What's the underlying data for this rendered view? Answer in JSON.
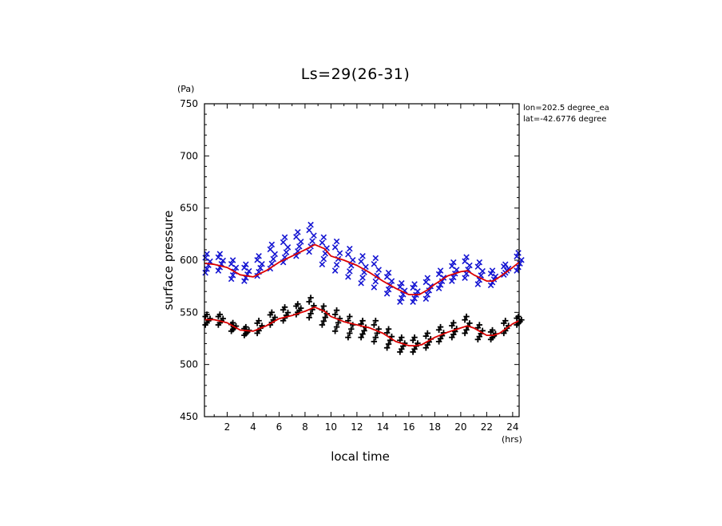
{
  "chart_data": {
    "type": "scatter",
    "title": "Ls=29(26-31)",
    "xlabel": "local time",
    "ylabel": "surface pressure",
    "x_unit": "(hrs)",
    "y_unit": "(Pa)",
    "xlim": [
      0.25,
      24.5
    ],
    "ylim": [
      450,
      750
    ],
    "x_ticks": [
      2,
      4,
      6,
      8,
      10,
      12,
      14,
      16,
      18,
      20,
      22,
      24
    ],
    "y_ticks": [
      450,
      500,
      550,
      600,
      650,
      700,
      750
    ],
    "annotations": [
      "lon=202.5 degree_ea",
      "lat=-42.6776 degree"
    ],
    "colors": {
      "series_a": "#1414d2",
      "series_b": "#000000",
      "fit": "#dc0000"
    },
    "series": [
      {
        "marker": "x",
        "x": [
          0.5,
          1.5,
          2.5,
          3.5,
          4.5,
          5.5,
          6.5,
          7.5,
          8.5,
          9.5,
          10.5,
          11.5,
          12.5,
          13.5,
          14.5,
          15.5,
          16.5,
          17.5,
          18.5,
          19.5,
          20.5,
          21.5,
          22.5,
          23.5,
          24.5
        ],
        "y_min": [
          588,
          590,
          582,
          580,
          585,
          592,
          598,
          604,
          608,
          596,
          590,
          584,
          578,
          574,
          568,
          560,
          560,
          563,
          573,
          580,
          583,
          577,
          576,
          586,
          590
        ],
        "y_max": [
          606,
          606,
          600,
          596,
          604,
          615,
          622,
          627,
          634,
          622,
          618,
          611,
          604,
          602,
          588,
          578,
          577,
          583,
          590,
          598,
          603,
          598,
          590,
          596,
          607
        ]
      },
      {
        "marker": "+",
        "x": [
          0.5,
          1.5,
          2.5,
          3.5,
          4.5,
          5.5,
          6.5,
          7.5,
          8.5,
          9.5,
          10.5,
          11.5,
          12.5,
          13.5,
          14.5,
          15.5,
          16.5,
          17.5,
          18.5,
          19.5,
          20.5,
          21.5,
          22.5,
          23.5,
          24.5
        ],
        "y_min": [
          538,
          538,
          532,
          528,
          530,
          538,
          542,
          548,
          545,
          538,
          532,
          526,
          526,
          522,
          516,
          512,
          512,
          516,
          522,
          526,
          530,
          524,
          524,
          530,
          538
        ],
        "y_max": [
          548,
          548,
          540,
          536,
          542,
          550,
          555,
          558,
          564,
          556,
          552,
          546,
          542,
          542,
          534,
          526,
          526,
          530,
          536,
          540,
          546,
          538,
          533,
          542,
          546
        ]
      },
      {
        "type": "line",
        "x": [
          0.25,
          1,
          2,
          3,
          4,
          5,
          6,
          7,
          8,
          8.75,
          9.5,
          10,
          11,
          12,
          13,
          14,
          15,
          16,
          16.8,
          17.5,
          18,
          19,
          20,
          20.5,
          21,
          22,
          22.5,
          23,
          24,
          24.5
        ],
        "y": [
          597,
          596,
          593,
          586,
          584,
          590,
          598,
          604,
          610,
          615,
          611,
          604,
          600,
          595,
          588,
          580,
          573,
          567,
          567,
          572,
          577,
          585,
          589,
          590,
          586,
          580,
          580,
          584,
          593,
          598
        ]
      },
      {
        "type": "line",
        "x": [
          0.25,
          1,
          2,
          3,
          4,
          5,
          6,
          7,
          8,
          8.75,
          9.5,
          10,
          11,
          12,
          13,
          14,
          15,
          16,
          16.5,
          17,
          18,
          19,
          20,
          20.5,
          21,
          22,
          22.5,
          23,
          24,
          24.5
        ],
        "y": [
          543,
          543,
          540,
          533,
          532,
          537,
          544,
          547,
          551,
          555,
          551,
          546,
          541,
          538,
          535,
          530,
          522,
          518,
          518,
          519,
          526,
          531,
          535,
          537,
          535,
          528,
          528,
          530,
          539,
          542
        ]
      }
    ]
  }
}
